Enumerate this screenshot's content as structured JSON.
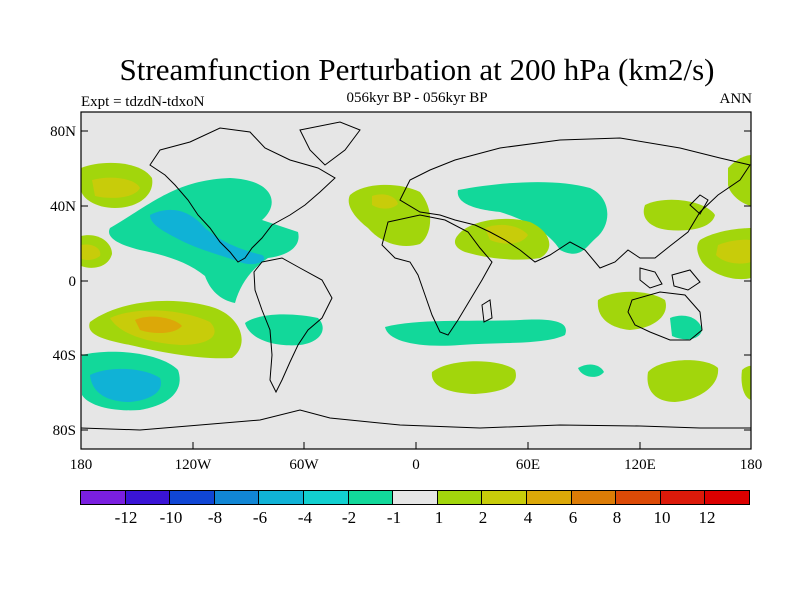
{
  "figure": {
    "title": "Streamfunction Perturbation at 200 hPa (km2/s)",
    "subtitle": "056kyr BP - 056kyr BP",
    "experiment": "Expt = tdzdN-tdxoN",
    "season": "ANN"
  },
  "map": {
    "projection": "cylindrical equidistant",
    "lon_range": [
      -180,
      180
    ],
    "lat_range": [
      -90,
      90
    ],
    "lat_tick_labels": [
      "80N",
      "40N",
      "0",
      "40S",
      "80S"
    ],
    "lon_tick_labels": [
      "180",
      "120W",
      "60W",
      "0",
      "60E",
      "120E",
      "180"
    ],
    "background_color": "#e6e6e6",
    "coastline_color": "#000000"
  },
  "chart_data": {
    "type": "heatmap",
    "variable": "streamfunction perturbation",
    "units": "km2/s",
    "level": "200 hPa",
    "contour_levels": [
      -12,
      -10,
      -8,
      -6,
      -4,
      -2,
      -1,
      1,
      2,
      4,
      6,
      8,
      10,
      12
    ],
    "colorbar_labels": [
      "-12",
      "-10",
      "-8",
      "-6",
      "-4",
      "-2",
      "-1",
      "1",
      "2",
      "4",
      "6",
      "8",
      "10",
      "12"
    ],
    "colorbar_colors": [
      "#7a1fe0",
      "#3a14d6",
      "#1046d4",
      "#1186d4",
      "#10b2d6",
      "#12d0d0",
      "#12d89a",
      "#e6e6e6",
      "#a2d60c",
      "#c8cc0a",
      "#dca808",
      "#dc7c06",
      "#dc4a06",
      "#dc1a0a",
      "#dc0000"
    ],
    "features": [
      {
        "region": "North Pacific (near date line)",
        "sign": "positive",
        "level_range": [
          2,
          4
        ]
      },
      {
        "region": "Tropical central Pacific",
        "sign": "positive",
        "level_range": [
          1,
          4
        ]
      },
      {
        "region": "South Pacific subtropics",
        "sign": "positive",
        "level_range": [
          2,
          6
        ]
      },
      {
        "region": "South Pacific mid-latitudes",
        "sign": "negative",
        "level_range": [
          -4,
          -1
        ]
      },
      {
        "region": "North America to Caribbean",
        "sign": "negative",
        "level_range": [
          -4,
          -1
        ]
      },
      {
        "region": "North Atlantic",
        "sign": "positive",
        "level_range": [
          1,
          4
        ]
      },
      {
        "region": "Arabian Peninsula",
        "sign": "positive",
        "level_range": [
          2,
          4
        ]
      },
      {
        "region": "Central Asia",
        "sign": "negative",
        "level_range": [
          -2,
          -1
        ]
      },
      {
        "region": "East Asia / NW Pacific",
        "sign": "positive",
        "level_range": [
          1,
          2
        ]
      },
      {
        "region": "West Pacific tropics (near date line)",
        "sign": "positive",
        "level_range": [
          2,
          4
        ]
      },
      {
        "region": "Southern Indian Ocean",
        "sign": "positive",
        "level_range": [
          1,
          2
        ]
      },
      {
        "region": "South Indian / Southern Ocean",
        "sign": "positive",
        "level_range": [
          1,
          2
        ]
      }
    ]
  }
}
